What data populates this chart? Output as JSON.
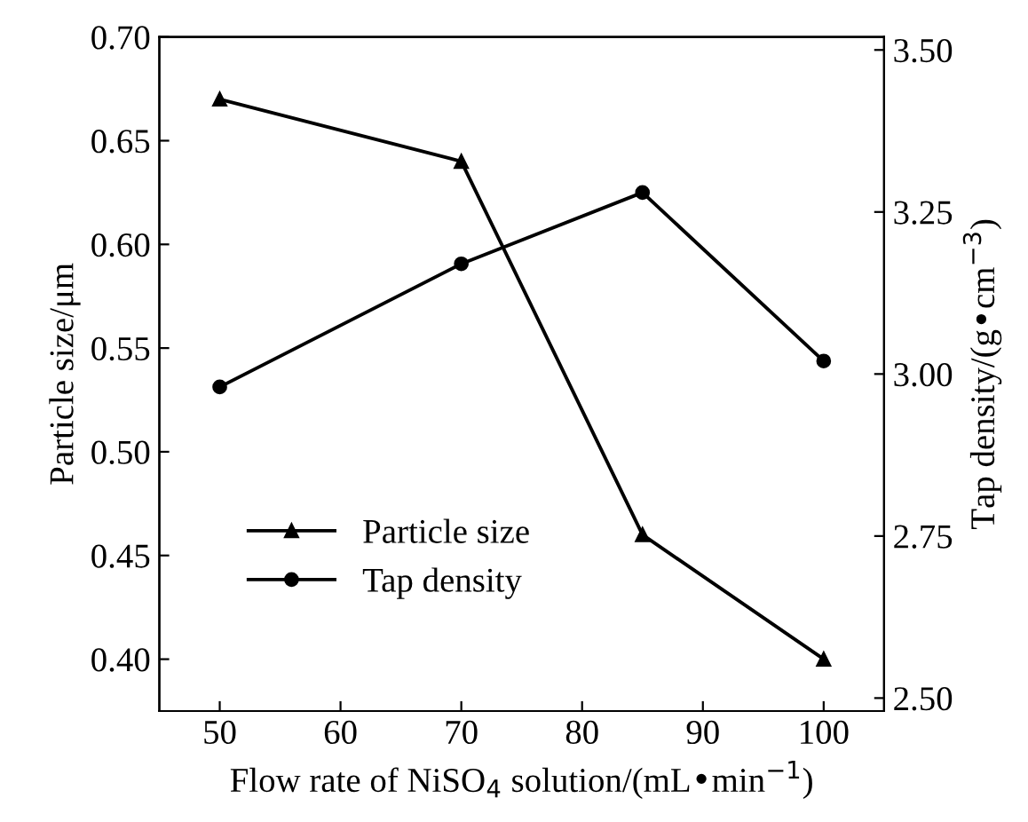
{
  "chart_data": {
    "type": "line",
    "xlabel": "Flow rate of NiSO$_{4}$ solution/(mL•min$^{−1}$)",
    "ylabel": "Particle size/μm",
    "y2label": "Tap density/(g•cm$^{−3}$)",
    "x": [
      50,
      70,
      85,
      100
    ],
    "series": [
      {
        "name": "Particle size",
        "color": "#000000",
        "marker": "triangle",
        "values": [
          0.67,
          0.64,
          0.46,
          0.4
        ]
      },
      {
        "name": "Tap density",
        "color": "#000000",
        "marker": "circle",
        "axis": "y2",
        "values": [
          2.98,
          3.17,
          3.28,
          3.02
        ]
      }
    ],
    "xlim": [
      45,
      105
    ],
    "xticks": [
      50,
      60,
      70,
      80,
      90,
      100
    ],
    "ylim": [
      0.375,
      0.7
    ],
    "yticks": [
      {
        "value": 0.4,
        "label": "0.40"
      },
      0.45,
      {
        "value": 0.5,
        "label": "0.50"
      },
      0.55,
      {
        "value": 0.6,
        "label": "0.60"
      },
      0.65,
      {
        "value": 0.7,
        "label": "0.70"
      }
    ],
    "y2lim": [
      2.48,
      3.52
    ],
    "y2ticks": [
      {
        "value": 2.5,
        "label": "2.50"
      },
      2.75,
      {
        "value": 3,
        "label": "3.00"
      },
      3.25,
      {
        "value": 3.5,
        "label": "3.50"
      }
    ],
    "grid": false,
    "legend": "bottom left",
    "line_style": "solid"
  }
}
